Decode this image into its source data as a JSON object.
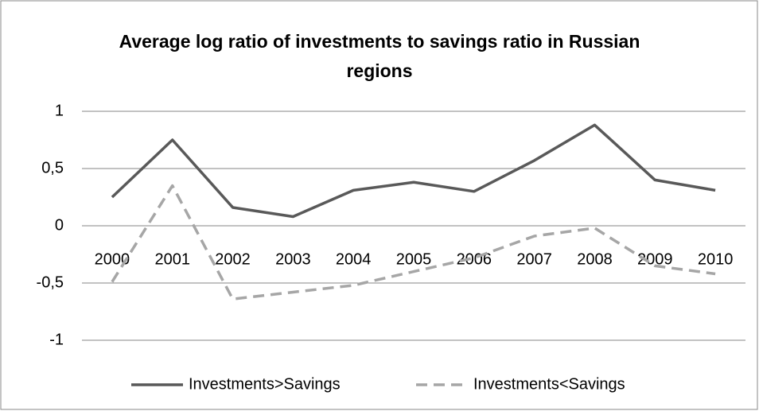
{
  "chart_data": {
    "type": "line",
    "title": "Average log ratio of investments to savings ratio in Russian regions",
    "categories": [
      "2000",
      "2001",
      "2002",
      "2003",
      "2004",
      "2005",
      "2006",
      "2007",
      "2008",
      "2009",
      "2010"
    ],
    "series": [
      {
        "name": "Investments>Savings",
        "color": "#595959",
        "dash": false,
        "values": [
          0.25,
          0.75,
          0.16,
          0.08,
          0.31,
          0.38,
          0.3,
          0.57,
          0.88,
          0.4,
          0.31
        ]
      },
      {
        "name": "Investments<Savings",
        "color": "#a6a6a6",
        "dash": true,
        "values": [
          -0.49,
          0.35,
          -0.64,
          -0.58,
          -0.52,
          -0.4,
          -0.28,
          -0.09,
          -0.02,
          -0.35,
          -0.42
        ]
      }
    ],
    "ylim": [
      -1,
      1
    ],
    "yticks": [
      -1,
      {
        "value": -0.5,
        "label": "-0,5"
      },
      0,
      {
        "value": 0.5,
        "label": "0,5"
      },
      1
    ],
    "grid": true,
    "legend": "bottom"
  }
}
